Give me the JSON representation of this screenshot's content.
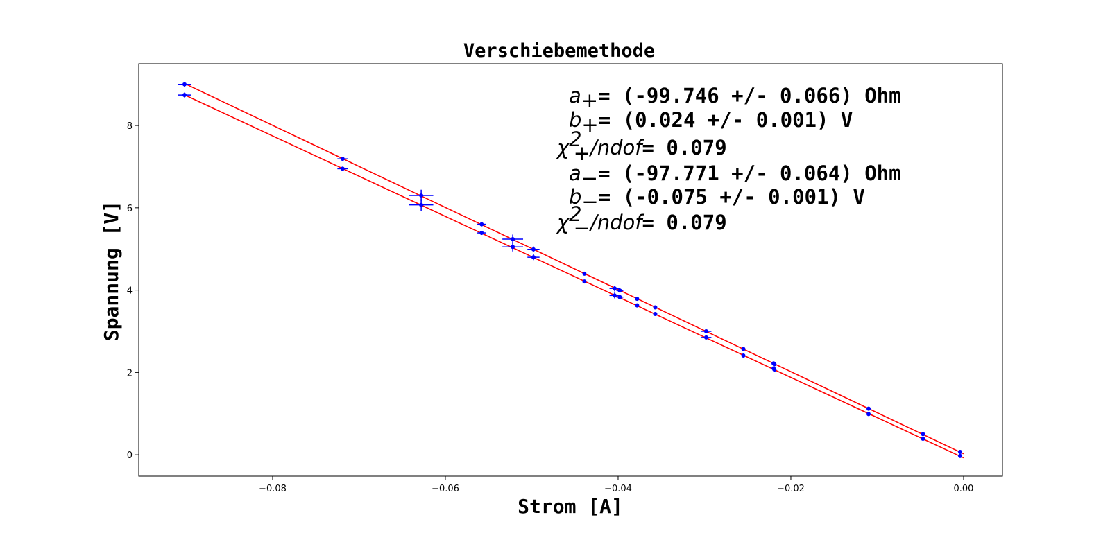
{
  "chart_data": {
    "type": "scatter",
    "title": "Verschiebemethode",
    "xlabel": "Strom [A]",
    "ylabel": "Spannung [V]",
    "xlim": [
      -0.0955,
      0.0045
    ],
    "ylim": [
      -0.52,
      9.5
    ],
    "xticks": [
      -0.08,
      -0.06,
      -0.04,
      -0.02,
      0.0
    ],
    "xtick_labels": [
      "−0.08",
      "−0.06",
      "−0.04",
      "−0.02",
      "0.00"
    ],
    "yticks": [
      0,
      2,
      4,
      6,
      8
    ],
    "ytick_labels": [
      "0",
      "2",
      "4",
      "6",
      "8"
    ],
    "grid": false,
    "colors": {
      "points": "#0000ff",
      "fit": "#ff0000"
    },
    "series": [
      {
        "points": [
          {
            "x": -0.0902,
            "y": 9.0,
            "xerr": 0.0008,
            "yerr": 0.06
          },
          {
            "x": -0.0719,
            "y": 7.19,
            "xerr": 0.0006,
            "yerr": 0.05
          },
          {
            "x": -0.0628,
            "y": 6.3,
            "xerr": 0.0014,
            "yerr": 0.14
          },
          {
            "x": -0.0558,
            "y": 5.6,
            "xerr": 0.0005,
            "yerr": 0.05
          },
          {
            "x": -0.0522,
            "y": 5.24,
            "xerr": 0.0012,
            "yerr": 0.11
          },
          {
            "x": -0.0498,
            "y": 4.99,
            "xerr": 0.0007,
            "yerr": 0.07
          },
          {
            "x": -0.0439,
            "y": 4.4,
            "xerr": 0.0002,
            "yerr": 0.03
          },
          {
            "x": -0.0404,
            "y": 4.04,
            "xerr": 0.0006,
            "yerr": 0.07
          },
          {
            "x": -0.0398,
            "y": 3.99,
            "xerr": 0.0004,
            "yerr": 0.05
          },
          {
            "x": -0.0378,
            "y": 3.79,
            "xerr": 0.0002,
            "yerr": 0.03
          },
          {
            "x": -0.0357,
            "y": 3.58,
            "xerr": 0.0002,
            "yerr": 0.03
          },
          {
            "x": -0.0298,
            "y": 3.0,
            "xerr": 0.0006,
            "yerr": 0.04
          },
          {
            "x": -0.0255,
            "y": 2.57,
            "xerr": 0.0002,
            "yerr": 0.03
          },
          {
            "x": -0.022,
            "y": 2.22,
            "xerr": 0.0002,
            "yerr": 0.03
          },
          {
            "x": -0.0219,
            "y": 2.2,
            "xerr": 0.0002,
            "yerr": 0.03
          },
          {
            "x": -0.011,
            "y": 1.12,
            "xerr": 0.0001,
            "yerr": 0.03
          },
          {
            "x": -0.0047,
            "y": 0.5,
            "xerr": 0.0001,
            "yerr": 0.03
          },
          {
            "x": -0.0004,
            "y": 0.07,
            "xerr": 0.0001,
            "yerr": 0.03
          }
        ],
        "fit": {
          "slope": -99.746,
          "intercept": 0.024,
          "x_range": [
            -0.0902,
            0.0
          ]
        }
      },
      {
        "points": [
          {
            "x": -0.0902,
            "y": 8.74,
            "xerr": 0.0008,
            "yerr": 0.06
          },
          {
            "x": -0.0719,
            "y": 6.95,
            "xerr": 0.0006,
            "yerr": 0.05
          },
          {
            "x": -0.0628,
            "y": 6.07,
            "xerr": 0.0014,
            "yerr": 0.14
          },
          {
            "x": -0.0558,
            "y": 5.39,
            "xerr": 0.0005,
            "yerr": 0.05
          },
          {
            "x": -0.0522,
            "y": 5.05,
            "xerr": 0.0012,
            "yerr": 0.11
          },
          {
            "x": -0.0498,
            "y": 4.8,
            "xerr": 0.0007,
            "yerr": 0.07
          },
          {
            "x": -0.0439,
            "y": 4.21,
            "xerr": 0.0002,
            "yerr": 0.03
          },
          {
            "x": -0.0404,
            "y": 3.87,
            "xerr": 0.0006,
            "yerr": 0.07
          },
          {
            "x": -0.0398,
            "y": 3.83,
            "xerr": 0.0004,
            "yerr": 0.05
          },
          {
            "x": -0.0378,
            "y": 3.63,
            "xerr": 0.0002,
            "yerr": 0.03
          },
          {
            "x": -0.0357,
            "y": 3.42,
            "xerr": 0.0002,
            "yerr": 0.03
          },
          {
            "x": -0.0298,
            "y": 2.85,
            "xerr": 0.0006,
            "yerr": 0.04
          },
          {
            "x": -0.0255,
            "y": 2.41,
            "xerr": 0.0002,
            "yerr": 0.03
          },
          {
            "x": -0.022,
            "y": 2.1,
            "xerr": 0.0002,
            "yerr": 0.03
          },
          {
            "x": -0.0219,
            "y": 2.07,
            "xerr": 0.0002,
            "yerr": 0.03
          },
          {
            "x": -0.011,
            "y": 0.99,
            "xerr": 0.0001,
            "yerr": 0.03
          },
          {
            "x": -0.0047,
            "y": 0.39,
            "xerr": 0.0001,
            "yerr": 0.03
          },
          {
            "x": -0.0004,
            "y": -0.03,
            "xerr": 0.0001,
            "yerr": 0.03
          }
        ],
        "fit": {
          "slope": -97.771,
          "intercept": -0.075,
          "x_range": [
            -0.0902,
            0.0
          ]
        }
      }
    ],
    "annotations": {
      "a_plus_sym": "a",
      "a_plus_sub": "+",
      "a_plus_val": "= (-99.746 +/- 0.066) Ohm",
      "b_plus_sym": "b",
      "b_plus_sub": "+",
      "b_plus_val": "= (0.024 +/- 0.001) V",
      "chi_plus_sym": "χ",
      "chi_plus_sup": "2",
      "chi_plus_sub": "+",
      "chi_plus_rest": "/ndof",
      "chi_plus_val": "= 0.079",
      "a_minus_sym": "a",
      "a_minus_sub": "−",
      "a_minus_val": "= (-97.771 +/- 0.064) Ohm",
      "b_minus_sym": "b",
      "b_minus_sub": "−",
      "b_minus_val": "= (-0.075 +/- 0.001) V",
      "chi_minus_sym": "χ",
      "chi_minus_sup": "2",
      "chi_minus_sub": "−",
      "chi_minus_rest": "/ndof",
      "chi_minus_val": "= 0.079"
    }
  }
}
